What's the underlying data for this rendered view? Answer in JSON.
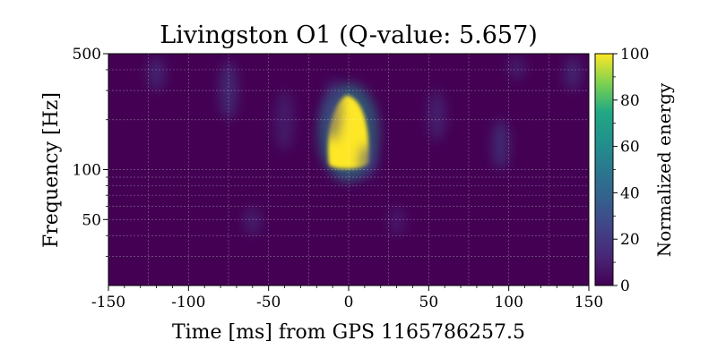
{
  "chart_data": {
    "type": "heatmap",
    "title": "Livingston O1 (Q-value: 5.657)",
    "xlabel": "Time [ms] from GPS 1165786257.5",
    "ylabel": "Frequency [Hz]",
    "x_range": [
      -150,
      150
    ],
    "y_range": [
      20,
      500
    ],
    "y_scale": "log",
    "x_ticks": [
      -150,
      -100,
      -50,
      0,
      50,
      100,
      150
    ],
    "x_tick_labels": [
      "-150",
      "-100",
      "-50",
      "0",
      "50",
      "100",
      "150"
    ],
    "y_ticks": [
      50,
      100,
      500
    ],
    "y_tick_labels": [
      "50",
      "100",
      "500"
    ],
    "grid": true,
    "colormap": "viridis",
    "colorbar": {
      "label": "Normalized energy",
      "range": [
        0,
        100
      ],
      "ticks": [
        0,
        20,
        40,
        60,
        80,
        100
      ],
      "tick_labels": [
        "0",
        "20",
        "40",
        "60",
        "80",
        "100"
      ]
    },
    "features": [
      {
        "time_ms": 0,
        "freq_low_hz": 100,
        "freq_high_hz": 280,
        "energy": 100
      },
      {
        "time_ms": -10,
        "freq_low_hz": 150,
        "freq_high_hz": 350,
        "energy": 10
      },
      {
        "time_ms": 12,
        "freq_low_hz": 90,
        "freq_high_hz": 140,
        "energy": 12
      },
      {
        "time_ms": -120,
        "freq_low_hz": 300,
        "freq_high_hz": 480,
        "energy": 10
      },
      {
        "time_ms": -75,
        "freq_low_hz": 200,
        "freq_high_hz": 450,
        "energy": 12
      },
      {
        "time_ms": -40,
        "freq_low_hz": 130,
        "freq_high_hz": 300,
        "energy": 8
      },
      {
        "time_ms": 55,
        "freq_low_hz": 150,
        "freq_high_hz": 300,
        "energy": 9
      },
      {
        "time_ms": 95,
        "freq_low_hz": 100,
        "freq_high_hz": 200,
        "energy": 12
      },
      {
        "time_ms": 105,
        "freq_low_hz": 350,
        "freq_high_hz": 480,
        "energy": 8
      },
      {
        "time_ms": 140,
        "freq_low_hz": 300,
        "freq_high_hz": 480,
        "energy": 10
      },
      {
        "time_ms": -60,
        "freq_low_hz": 40,
        "freq_high_hz": 60,
        "energy": 8
      },
      {
        "time_ms": 30,
        "freq_low_hz": 40,
        "freq_high_hz": 60,
        "energy": 6
      }
    ],
    "colors": {
      "low": "#440154",
      "mid": "#21918c",
      "high": "#fde725"
    }
  }
}
